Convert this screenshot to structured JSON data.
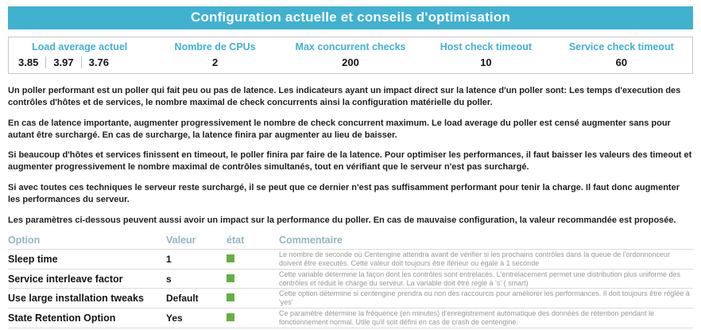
{
  "banner": {
    "title": "Configuration actuelle et conseils d'optimisation"
  },
  "stats": {
    "load": {
      "label": "Load average actuel",
      "values": [
        "3.85",
        "3.97",
        "3.76"
      ]
    },
    "cpus": {
      "label": "Nombre de CPUs",
      "value": "2"
    },
    "max_checks": {
      "label": "Max concurrent checks",
      "value": "200"
    },
    "host_timeout": {
      "label": "Host check timeout",
      "value": "10"
    },
    "service_timeout": {
      "label": "Service check timeout",
      "value": "60"
    }
  },
  "paragraphs": [
    "Un poller performant est un poller qui fait peu ou pas de latence. Les indicateurs ayant un impact direct sur la latence d'un poller sont: Les temps d'execution des contrôles d'hôtes et de services, le nombre maximal de check concurrents ainsi la configuration matérielle du poller.",
    "En cas de latence importante, augmenter progressivement le nombre de check concurrent maximum. Le load average du poller est censé augmenter sans pour autant être surchargé. En cas de surcharge, la latence finira par augmenter au lieu de baisser.",
    "Si beaucoup d'hôtes et services finissent en timeout, le poller finira par faire de la latence. Pour optimiser les performances, il faut baisser les valeurs des timeout et augmenter progressivement le nombre maximal de contrôles simultanés, tout en vérifiant que le serveur n'est pas surchargé.",
    "Si avec toutes ces techniques le serveur reste surchargé, il se peut que ce dernier n'est pas suffisamment performant pour tenir la charge. Il faut donc augmenter les performances du serveur.",
    "Les paramètres ci-dessous peuvent aussi avoir un impact sur la performance du poller. En cas de mauvaise configuration, la valeur recommandée est proposée."
  ],
  "options_table": {
    "headers": {
      "option": "Option",
      "valeur": "Valeur",
      "etat": "état",
      "commentaire": "Commentaire"
    },
    "rows": [
      {
        "option": "Sleep time",
        "valeur": "1",
        "etat": "ok",
        "commentaire": "Le nombre de seconde où Centengine attendra avant de vérifier si les prochains contrôles dans la queue de l'ordonnonceur doivent être executés. Cette valeur doit toujours être iférieur ou égale à 1 seconde"
      },
      {
        "option": "Service interleave factor",
        "valeur": "s",
        "etat": "ok",
        "commentaire": "Cette variable determine la façon dont les contrôles sont entrelacés. L'entrelacement permet une distribution plus uniforme des contrôles et réduit le charge du serveur. La variable doit être reglé à 's' ( smart)"
      },
      {
        "option": "Use large installation tweaks",
        "valeur": "Default",
        "etat": "ok",
        "commentaire": "Cette option détermine si centengine prendra ou non des raccourcis pour améliorer les performances. Il doit toujours être réglée à 'yes'"
      },
      {
        "option": "State Retention Option",
        "valeur": "Yes",
        "etat": "ok",
        "commentaire": "Ce paramètre détermine la fréquence (en minutes) d'enregistrement automatique des données de rétention pendant le fonctionnement normal. Utile qu'il soit défini en cas de crash de centengine."
      }
    ]
  },
  "colors": {
    "accent": "#41b1d0",
    "accent_light": "#92b5c3",
    "status_ok": "#63b043"
  }
}
